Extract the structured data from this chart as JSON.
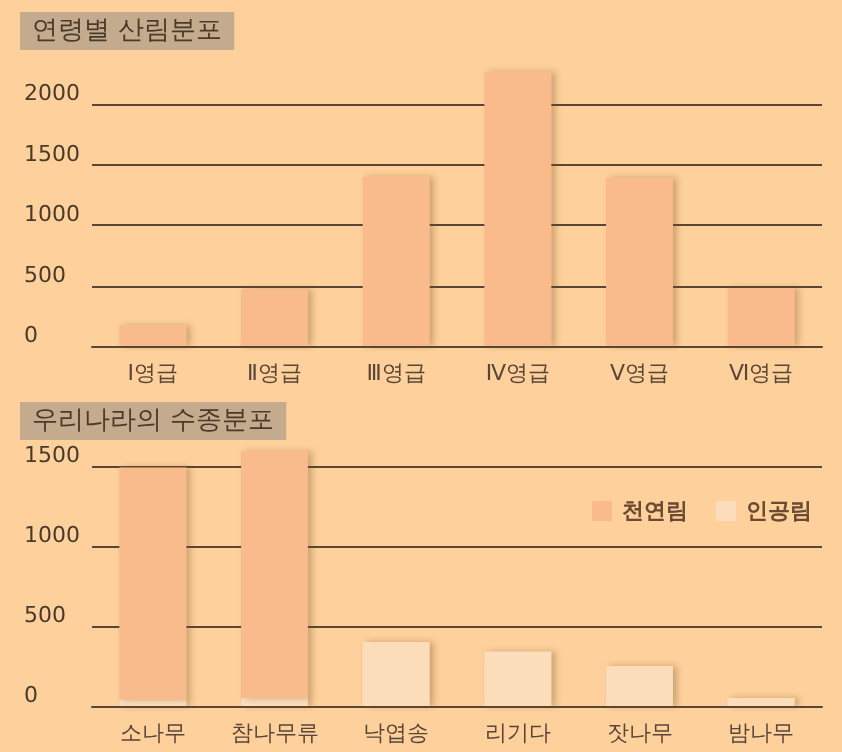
{
  "chart_data": [
    {
      "type": "bar",
      "title": "연령별 산림분포",
      "categories": [
        "Ⅰ영급",
        "Ⅱ영급",
        "Ⅲ영급",
        "Ⅳ영급",
        "Ⅴ영급",
        "Ⅵ영급"
      ],
      "values": [
        170,
        470,
        1400,
        2270,
        1390,
        480
      ],
      "color": "#f9bb8c",
      "ylim": [
        0,
        2300
      ],
      "yticks": [
        0,
        500,
        1000,
        1500,
        2000
      ],
      "grid": "y",
      "legend": false
    },
    {
      "type": "bar",
      "title": "우리나라의 수종분포",
      "categories": [
        "소나무",
        "참나무류",
        "낙엽송",
        "리기다",
        "잣나무",
        "밤나무"
      ],
      "stacked": true,
      "series": [
        {
          "name": "인공림",
          "color": "#fbdcbb",
          "values": [
            40,
            50,
            400,
            340,
            250,
            50
          ]
        },
        {
          "name": "천연림",
          "color": "#f9bb8c",
          "values": [
            1450,
            1540,
            null,
            null,
            null,
            null
          ]
        }
      ],
      "ylim": [
        0,
        1600
      ],
      "yticks": [
        0,
        500,
        1000,
        1500
      ],
      "grid": "y",
      "legend": "top right"
    }
  ]
}
